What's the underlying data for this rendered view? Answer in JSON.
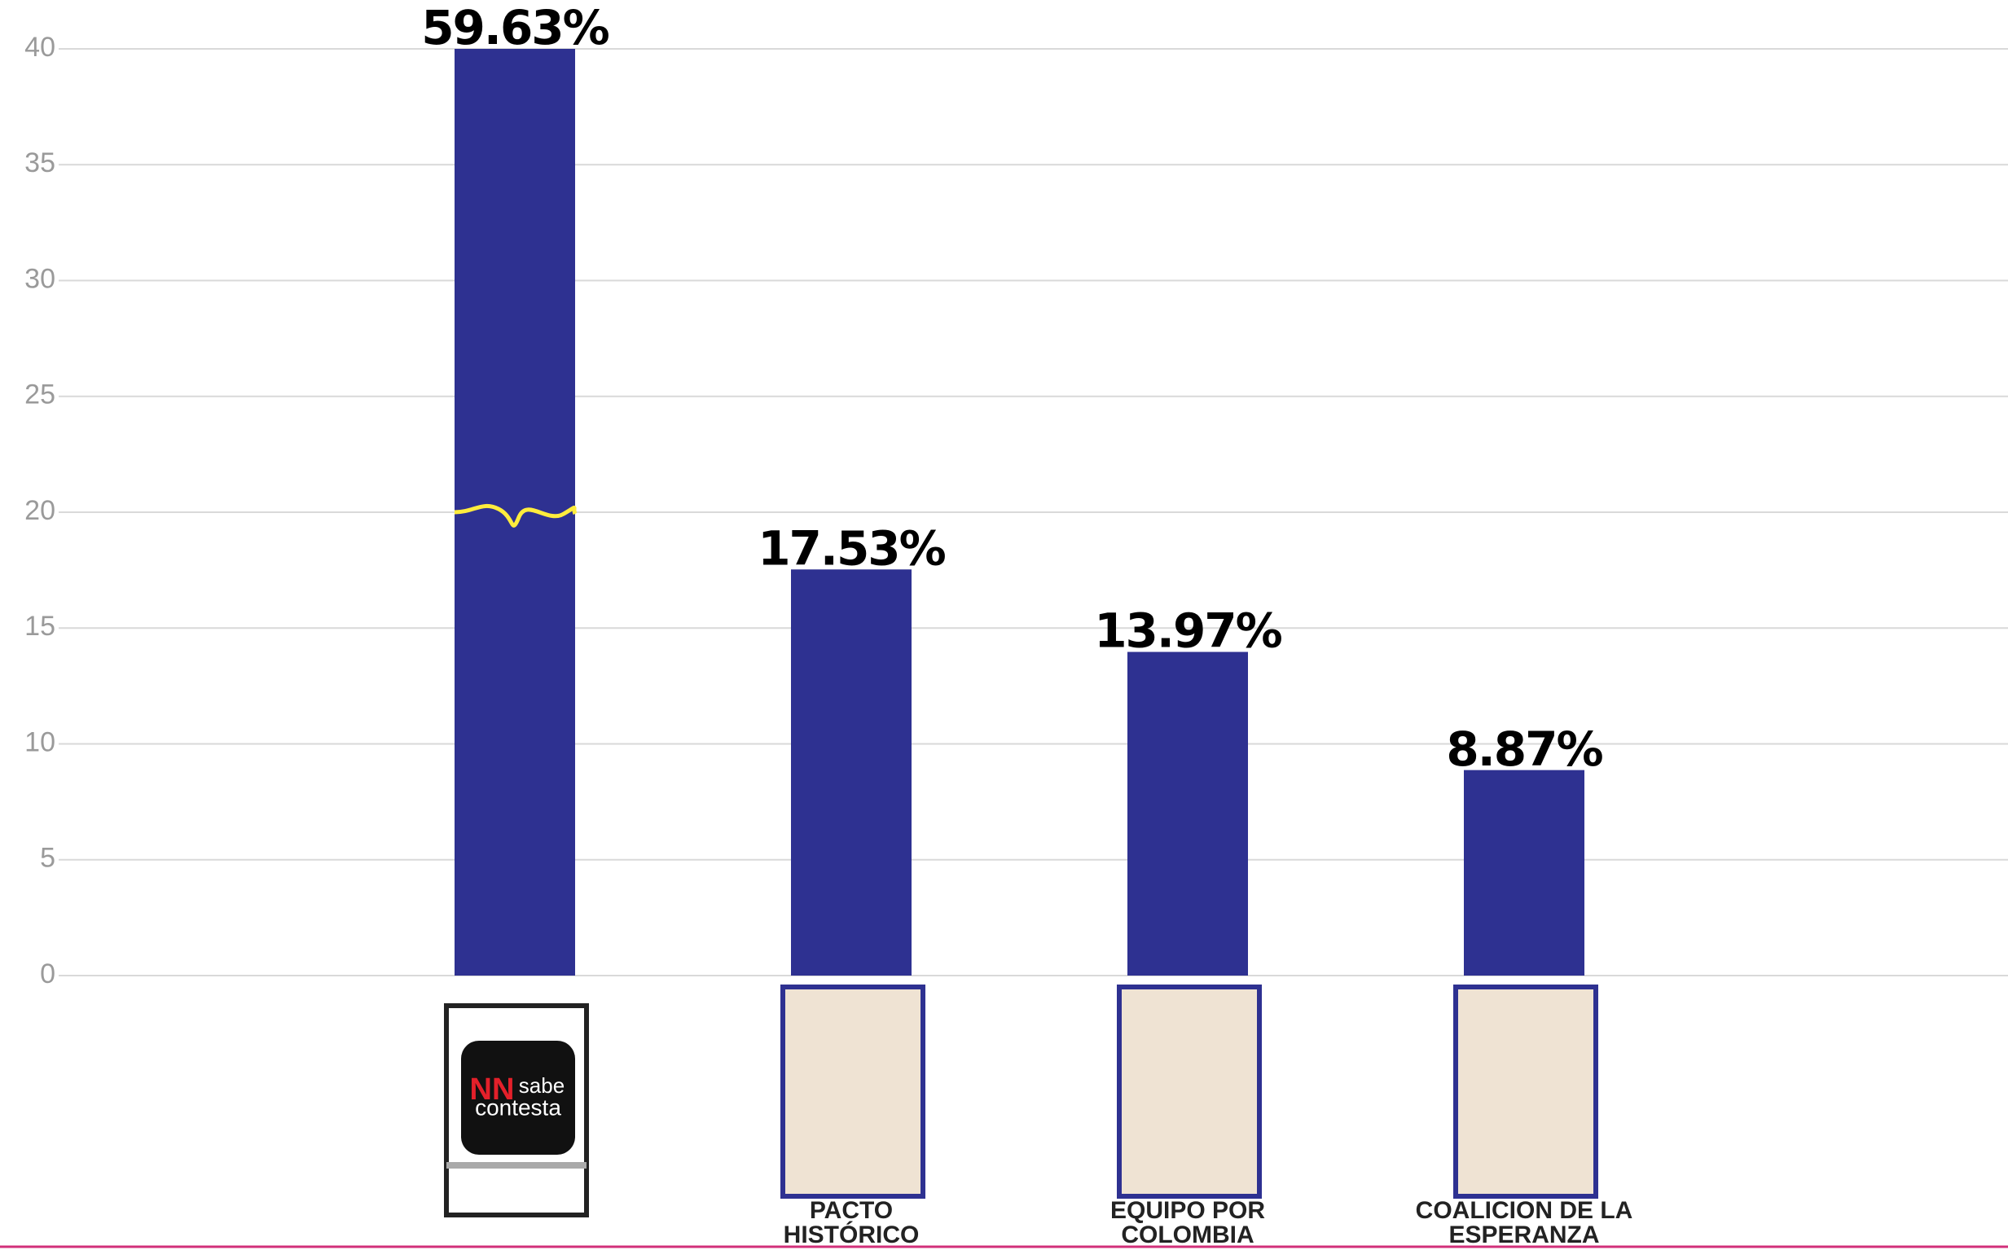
{
  "chart_data": {
    "type": "bar",
    "categories": [
      null,
      "PACTO HISTÓRICO",
      "EQUIPO POR COLOMBIA",
      "COALICION DE LA ESPERANZA"
    ],
    "values": [
      59.63,
      17.53,
      13.97,
      8.87
    ],
    "value_labels": [
      "59.63%",
      "17.53%",
      "13.97%",
      "8.87%"
    ],
    "color": "#2e3191",
    "ylim": [
      0,
      40
    ],
    "yticks": [
      0,
      5,
      10,
      15,
      20,
      25,
      30,
      35,
      40
    ],
    "grid": true,
    "logo": {
      "name1": "NN",
      "name2": "sabe",
      "name3": "contesta"
    }
  }
}
